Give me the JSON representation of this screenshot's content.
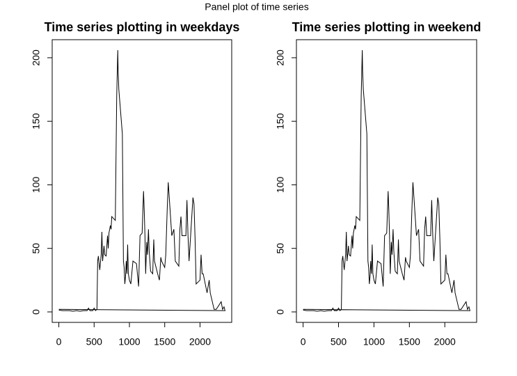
{
  "title": "Panel plot of time series",
  "chart_data": [
    {
      "type": "line",
      "title": "Time series plotting in weekdays",
      "x": [
        0,
        50,
        100,
        150,
        200,
        250,
        300,
        350,
        400,
        420,
        440,
        480,
        500,
        520,
        540,
        550,
        560,
        580,
        600,
        610,
        620,
        640,
        650,
        670,
        690,
        700,
        710,
        730,
        740,
        750,
        800,
        820,
        835,
        840,
        850,
        900,
        915,
        925,
        935,
        945,
        955,
        965,
        975,
        985,
        1000,
        1020,
        1050,
        1100,
        1130,
        1150,
        1180,
        1200,
        1210,
        1220,
        1230,
        1245,
        1255,
        1270,
        1280,
        1300,
        1330,
        1345,
        1355,
        1400,
        1425,
        1445,
        1455,
        1500,
        1515,
        1535,
        1550,
        1600,
        1630,
        1650,
        1700,
        1715,
        1730,
        1745,
        1800,
        1815,
        1830,
        1845,
        1900,
        1915,
        1930,
        1945,
        2000,
        2015,
        2030,
        2045,
        2100,
        2130,
        2145,
        2200,
        2230,
        2300,
        2320,
        2340,
        2355,
        0
      ],
      "y": [
        1.5,
        1,
        1,
        1,
        0.5,
        1,
        0.5,
        1,
        1,
        3,
        1,
        1,
        3,
        1,
        2,
        40,
        44,
        33,
        45,
        63,
        40,
        52,
        45,
        44,
        60,
        50,
        62,
        68,
        65,
        75,
        72,
        170,
        206,
        190,
        175,
        140,
        40,
        35,
        22,
        28,
        40,
        30,
        53,
        30,
        25,
        22,
        40,
        38,
        20,
        60,
        62,
        95,
        80,
        60,
        30,
        55,
        45,
        65,
        48,
        32,
        30,
        57,
        40,
        30,
        25,
        43,
        40,
        35,
        45,
        80,
        102,
        60,
        65,
        40,
        36,
        65,
        75,
        60,
        60,
        88,
        60,
        40,
        90,
        85,
        58,
        22,
        25,
        45,
        30,
        30,
        15,
        25,
        15,
        2,
        2,
        8,
        2,
        4,
        1,
        2
      ],
      "color": "#000000",
      "xlim": [
        -94.2,
        2449.2
      ],
      "ylim": [
        -8.24,
        214.2
      ],
      "xticks": [
        0,
        500,
        1000,
        1500,
        2000
      ],
      "yticks": [
        0,
        50,
        100,
        150,
        200
      ]
    },
    {
      "type": "line",
      "title": "Time series plotting in weekend",
      "x": [
        0,
        50,
        100,
        150,
        200,
        250,
        300,
        350,
        400,
        420,
        440,
        480,
        500,
        520,
        540,
        550,
        560,
        580,
        600,
        610,
        620,
        640,
        650,
        670,
        690,
        700,
        710,
        730,
        740,
        750,
        800,
        820,
        835,
        840,
        850,
        900,
        915,
        925,
        935,
        945,
        955,
        965,
        975,
        985,
        1000,
        1020,
        1050,
        1100,
        1130,
        1150,
        1180,
        1200,
        1210,
        1220,
        1230,
        1245,
        1255,
        1270,
        1280,
        1300,
        1330,
        1345,
        1355,
        1400,
        1425,
        1445,
        1455,
        1500,
        1515,
        1535,
        1550,
        1600,
        1630,
        1650,
        1700,
        1715,
        1730,
        1745,
        1800,
        1815,
        1830,
        1845,
        1900,
        1915,
        1930,
        1945,
        2000,
        2015,
        2030,
        2045,
        2100,
        2130,
        2145,
        2200,
        2230,
        2300,
        2320,
        2340,
        2355,
        0
      ],
      "y": [
        1.5,
        1,
        1,
        1,
        0.5,
        1,
        0.5,
        1,
        1,
        3,
        1,
        1,
        3,
        1,
        2,
        40,
        44,
        33,
        45,
        63,
        40,
        52,
        45,
        44,
        60,
        50,
        62,
        68,
        65,
        75,
        72,
        170,
        206,
        190,
        175,
        140,
        40,
        35,
        22,
        28,
        40,
        30,
        53,
        30,
        25,
        22,
        40,
        38,
        20,
        60,
        62,
        95,
        80,
        60,
        30,
        55,
        45,
        65,
        48,
        32,
        30,
        57,
        40,
        30,
        25,
        43,
        40,
        35,
        45,
        80,
        102,
        60,
        65,
        40,
        36,
        65,
        75,
        60,
        60,
        88,
        60,
        40,
        90,
        85,
        58,
        22,
        25,
        45,
        30,
        30,
        15,
        25,
        15,
        2,
        2,
        8,
        2,
        4,
        1,
        2
      ],
      "color": "#000000",
      "xlim": [
        -94.2,
        2449.2
      ],
      "ylim": [
        -8.24,
        214.2
      ],
      "xticks": [
        0,
        500,
        1000,
        1500,
        2000
      ],
      "yticks": [
        0,
        50,
        100,
        150,
        200
      ]
    }
  ]
}
